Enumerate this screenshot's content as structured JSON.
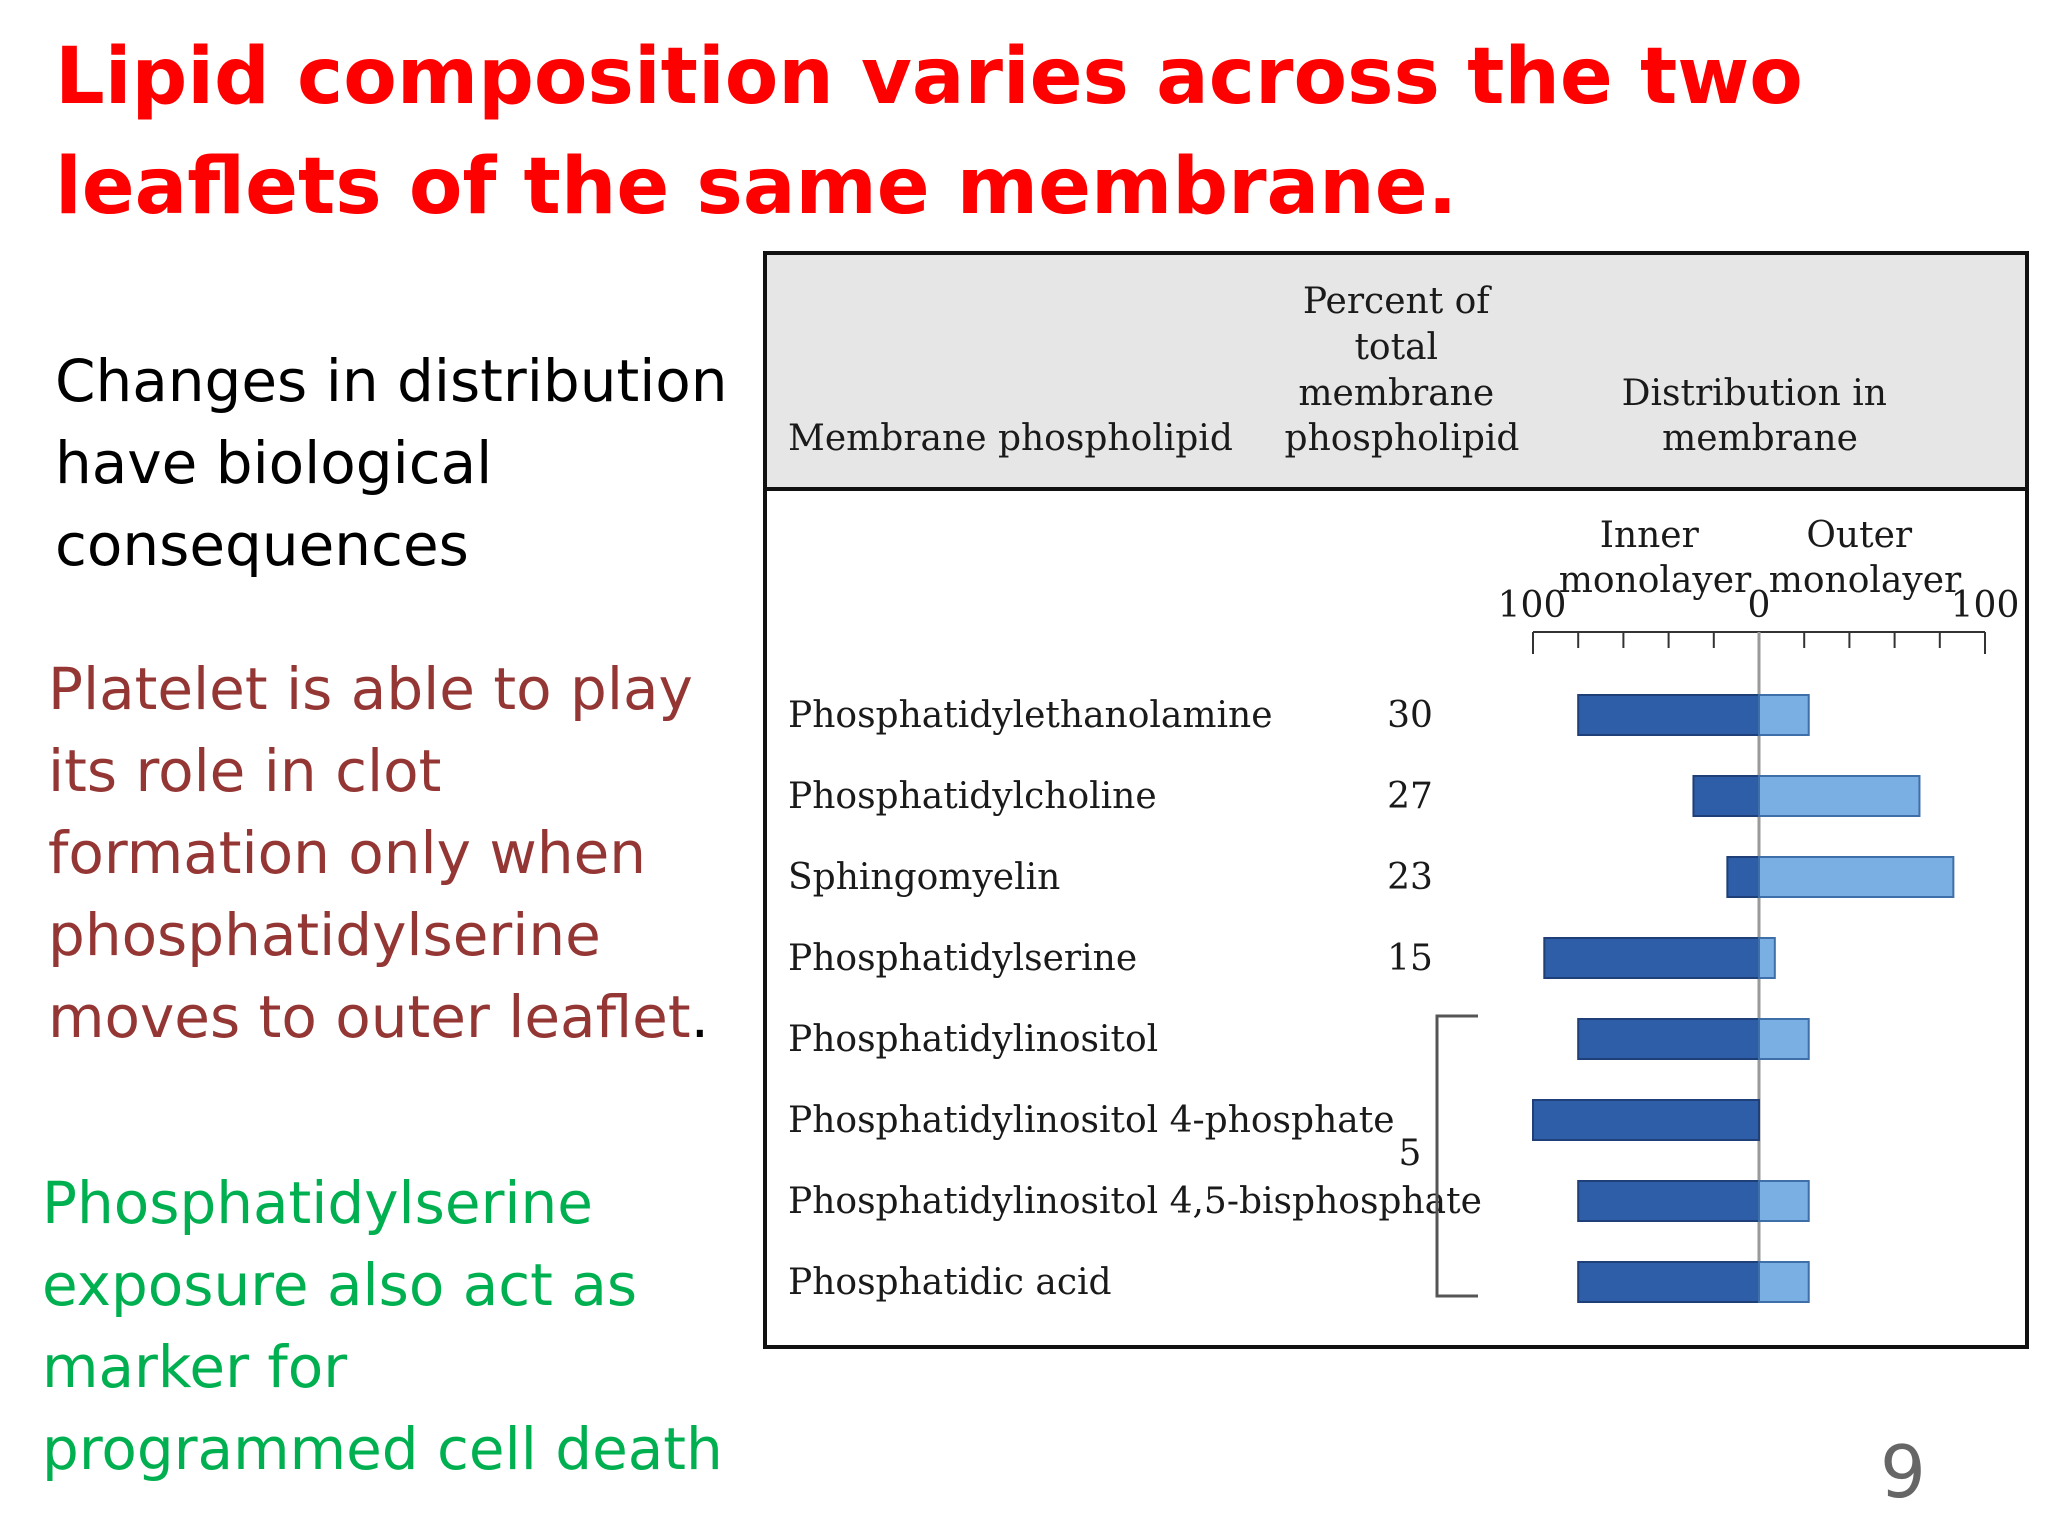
{
  "slide": {
    "title": "Lipid composition varies across the two leaflets of the same membrane.",
    "para1": "Changes in distribution have biological consequences",
    "para2": "Platelet is able to play its role in clot formation only when phosphatidylserine moves to outer leaflet",
    "para2_period": ".",
    "para3": "Phosphatidylserine exposure also act as marker for programmed cell death",
    "page_number": "9"
  },
  "colors": {
    "title": "#ff0000",
    "para2": "#943634",
    "para3": "#00b050",
    "inner_bar": "#2f5ea8",
    "outer_bar": "#79afe3",
    "header_bg": "#e6e6e6"
  },
  "chart_data": {
    "type": "table",
    "headers": {
      "phospholipid": "Membrane phospholipid",
      "percent": [
        "Percent of",
        "total",
        "membrane",
        "phospholipid"
      ],
      "distribution": [
        "Distribution in",
        "membrane"
      ]
    },
    "axis": {
      "inner_label": [
        "Inner",
        "monolayer"
      ],
      "outer_label": [
        "Outer",
        "monolayer"
      ],
      "tick_left": "100",
      "tick_center": "0",
      "tick_right": "100",
      "range": [
        -100,
        100
      ],
      "minor_tick_step": 20
    },
    "rows": [
      {
        "name": "Phosphatidylethanolamine",
        "percent": "30",
        "inner": 80,
        "outer": 22
      },
      {
        "name": "Phosphatidylcholine",
        "percent": "27",
        "inner": 29,
        "outer": 71
      },
      {
        "name": "Sphingomyelin",
        "percent": "23",
        "inner": 14,
        "outer": 86
      },
      {
        "name": "Phosphatidylserine",
        "percent": "15",
        "inner": 95,
        "outer": 7
      },
      {
        "name": "Phosphatidylinositol",
        "percent": "",
        "inner": 80,
        "outer": 22
      },
      {
        "name": "Phosphatidylinositol 4-phosphate",
        "percent": "",
        "inner": 100,
        "outer": 0
      },
      {
        "name": "Phosphatidylinositol 4,5-bisphosphate",
        "percent": "",
        "inner": 80,
        "outer": 22
      },
      {
        "name": "Phosphatidic acid",
        "percent": "",
        "inner": 80,
        "outer": 22
      }
    ],
    "group_percent": "5"
  }
}
